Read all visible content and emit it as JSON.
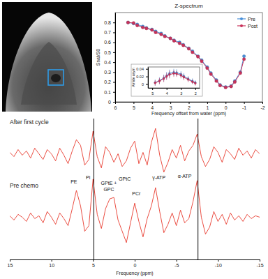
{
  "chart_data": [
    {
      "type": "line",
      "title": "Z-spectrum",
      "x_label": "Frequency offset from water (ppm)",
      "y_label": "Ssat/S0",
      "x": [
        5.3,
        5,
        4.8,
        4.5,
        4.3,
        4,
        3.8,
        3.5,
        3.3,
        3,
        2.8,
        2.5,
        2.3,
        2,
        1.8,
        1.5,
        1.3,
        1,
        0.8,
        0.5,
        0.3,
        0,
        -0.3,
        -0.5,
        -0.8,
        -1
      ],
      "xlim": [
        6,
        -2
      ],
      "xticks": [
        6,
        5,
        4,
        3,
        2,
        1,
        0,
        -1,
        -2
      ],
      "ylim": [
        0,
        0.9
      ],
      "yticks": [
        0,
        0.1,
        0.2,
        0.3,
        0.4,
        0.5,
        0.6,
        0.7,
        0.8
      ],
      "legend": "top-right",
      "series": [
        {
          "name": "Pre",
          "color": "#4a90d9",
          "marker": "circle",
          "values": [
            0.8,
            0.79,
            0.78,
            0.76,
            0.745,
            0.73,
            0.71,
            0.69,
            0.665,
            0.64,
            0.62,
            0.6,
            0.575,
            0.54,
            0.51,
            0.46,
            0.42,
            0.35,
            0.29,
            0.22,
            0.17,
            0.15,
            0.16,
            0.21,
            0.3,
            0.46
          ]
        },
        {
          "name": "Post",
          "color": "#c8325a",
          "marker": "circle",
          "values": [
            0.8,
            0.795,
            0.77,
            0.75,
            0.74,
            0.725,
            0.7,
            0.68,
            0.66,
            0.64,
            0.615,
            0.59,
            0.57,
            0.535,
            0.5,
            0.455,
            0.41,
            0.34,
            0.28,
            0.21,
            0.165,
            0.145,
            0.155,
            0.2,
            0.29,
            0.43
          ]
        }
      ]
    },
    {
      "type": "line",
      "y_label": "Amide asym",
      "x": [
        4.8,
        4.5,
        4.2,
        4,
        3.8,
        3.5,
        3.3,
        3,
        2.8,
        2.5,
        2.2,
        2
      ],
      "xlim": [
        5.3,
        1.7
      ],
      "xticks": [
        5,
        4,
        3,
        2
      ],
      "ylim": [
        -0.01,
        0.045
      ],
      "yticks": [
        0,
        0.02,
        0.04
      ],
      "series": [
        {
          "color": "#4a90d9",
          "marker": "circle",
          "values": [
            0.004,
            0.009,
            0.016,
            0.022,
            0.028,
            0.031,
            0.03,
            0.026,
            0.021,
            0.014,
            0.008,
            0.004
          ],
          "errors": [
            0.008,
            0.009,
            0.009,
            0.01,
            0.01,
            0.009,
            0.009,
            0.008,
            0.008,
            0.007,
            0.007,
            0.006
          ]
        },
        {
          "color": "#c8325a",
          "marker": "circle",
          "values": [
            0.003,
            0.008,
            0.014,
            0.02,
            0.025,
            0.028,
            0.027,
            0.023,
            0.018,
            0.012,
            0.006,
            0.002
          ],
          "errors": [
            0.007,
            0.008,
            0.009,
            0.009,
            0.01,
            0.009,
            0.008,
            0.008,
            0.008,
            0.007,
            0.006,
            0.006
          ]
        }
      ]
    },
    {
      "type": "line",
      "x_label": "Frequency (ppm)",
      "x": [
        15,
        14.5,
        14,
        13.5,
        13,
        12.5,
        12,
        11.5,
        11,
        10.5,
        10,
        9.5,
        9,
        8.5,
        8,
        7.5,
        7,
        6.5,
        6,
        5.5,
        5,
        4.5,
        4,
        3.5,
        3,
        2.5,
        2,
        1.5,
        1,
        0.5,
        0,
        -0.5,
        -1,
        -1.5,
        -2,
        -2.5,
        -3,
        -3.5,
        -4,
        -4.5,
        -5,
        -5.5,
        -6,
        -6.5,
        -7,
        -7.5,
        -8,
        -8.5,
        -9,
        -9.5,
        -10,
        -10.5,
        -11,
        -11.5,
        -12,
        -12.5,
        -13,
        -13.5,
        -14,
        -14.5,
        -15
      ],
      "xlim": [
        15,
        -15
      ],
      "xticks": [
        15,
        10,
        5,
        0,
        -5,
        -10,
        -15
      ],
      "ylim": [
        0,
        10
      ],
      "tick_labels": "x",
      "series": [
        {
          "name": "After first cycle",
          "color": "#e8392c",
          "values": [
            7.6,
            7.3,
            7.8,
            7.4,
            7.7,
            7.2,
            7.9,
            7.5,
            7.1,
            7.8,
            7.5,
            7.0,
            7.9,
            7.4,
            6.8,
            7.7,
            8.5,
            8.1,
            6.7,
            7.1,
            9.1,
            7.3,
            6.5,
            8.0,
            7.6,
            6.9,
            7.5,
            6.6,
            7.0,
            7.9,
            8.4,
            6.8,
            7.6,
            6.7,
            8.3,
            9.3,
            7.4,
            6.2,
            6.9,
            7.8,
            7.2,
            8.1,
            7.0,
            7.7,
            8.1,
            8.9,
            7.3,
            6.6,
            7.1,
            8.0,
            7.6,
            6.9,
            7.8,
            7.5,
            7.1,
            7.9,
            7.4,
            7.7,
            7.2,
            7.8,
            7.5
          ]
        },
        {
          "name": "Pre chemo",
          "color": "#e8392c",
          "values": [
            3.1,
            2.8,
            3.2,
            3.0,
            2.7,
            3.3,
            2.9,
            3.1,
            2.6,
            3.4,
            3.0,
            2.5,
            3.3,
            2.9,
            2.4,
            3.6,
            4.9,
            3.8,
            2.0,
            2.4,
            5.7,
            3.2,
            2.2,
            3.6,
            4.3,
            4.4,
            2.8,
            2.0,
            1.2,
            2.6,
            4.0,
            2.7,
            1.6,
            2.9,
            3.8,
            5.1,
            3.4,
            1.9,
            2.5,
            3.3,
            2.4,
            3.5,
            2.6,
            2.9,
            4.1,
            5.6,
            3.0,
            1.8,
            2.3,
            3.4,
            2.7,
            3.2,
            2.5,
            3.3,
            2.8,
            3.1,
            2.7,
            3.2,
            2.9,
            3.1,
            3.0
          ]
        }
      ],
      "annotations": [
        {
          "text": "PE",
          "x": 7.3,
          "y": 5.4
        },
        {
          "text": "Pi",
          "x": 5.6,
          "y": 5.7
        },
        {
          "text": "GPtE +",
          "x": 3.1,
          "y": 5.3
        },
        {
          "text": "GPC",
          "x": 3.1,
          "y": 4.85
        },
        {
          "text": "GPtC",
          "x": 1.2,
          "y": 5.6
        },
        {
          "text": "PCr",
          "x": -0.2,
          "y": 4.55
        },
        {
          "text": "γ-ATP",
          "x": -2.9,
          "y": 5.7
        },
        {
          "text": "α-ATP",
          "x": -6.0,
          "y": 5.8
        }
      ],
      "reference_lines": [
        4.9,
        -7.6
      ]
    }
  ]
}
